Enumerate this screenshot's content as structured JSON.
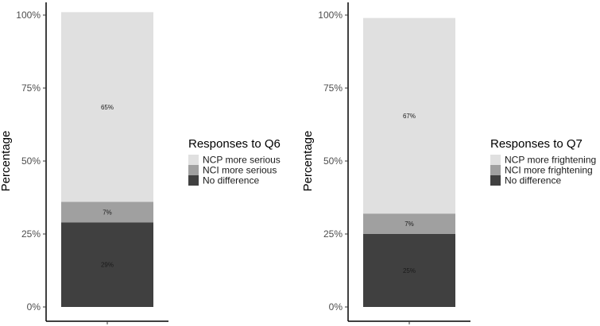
{
  "chart_data": [
    {
      "type": "bar",
      "stacked": true,
      "ylabel": "Percentage",
      "ylim": [
        0,
        100
      ],
      "yticks": [
        "0%",
        "25%",
        "50%",
        "75%",
        "100%"
      ],
      "categories": [
        ""
      ],
      "series": [
        {
          "name": "No difference",
          "values": [
            29
          ],
          "label": "29%",
          "color": "#404040"
        },
        {
          "name": "NCI more serious",
          "values": [
            7
          ],
          "label": "7%",
          "color": "#a0a0a0"
        },
        {
          "name": "NCP more serious",
          "values": [
            65
          ],
          "label": "65%",
          "color": "#e0e0e0"
        }
      ],
      "legend": {
        "title": "Responses to Q6",
        "position": "right",
        "entries": [
          "NCP more serious",
          "NCI more serious",
          "No difference"
        ]
      }
    },
    {
      "type": "bar",
      "stacked": true,
      "ylabel": "Percentage",
      "ylim": [
        0,
        100
      ],
      "yticks": [
        "0%",
        "25%",
        "50%",
        "75%",
        "100%"
      ],
      "categories": [
        ""
      ],
      "series": [
        {
          "name": "No difference",
          "values": [
            25
          ],
          "label": "25%",
          "color": "#404040"
        },
        {
          "name": "NCI more frightening",
          "values": [
            7
          ],
          "label": "7%",
          "color": "#a0a0a0"
        },
        {
          "name": "NCP more frightening",
          "values": [
            67
          ],
          "label": "67%",
          "color": "#e0e0e0"
        }
      ],
      "legend": {
        "title": "Responses to Q7",
        "position": "right",
        "entries": [
          "NCP more frightening",
          "NCI more frightening",
          "No difference"
        ]
      }
    }
  ]
}
